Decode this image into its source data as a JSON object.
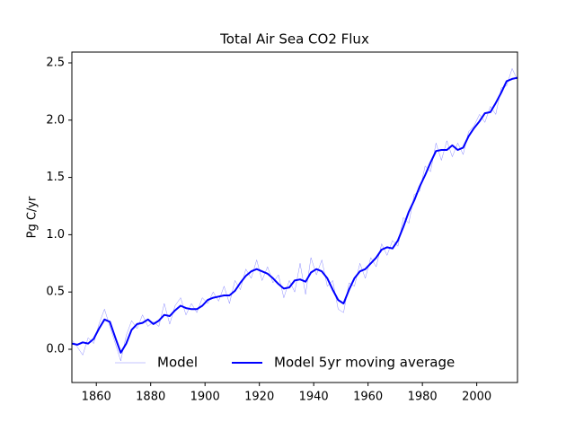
{
  "chart_data": {
    "type": "line",
    "title": "Total Air Sea CO2 Flux",
    "ylabel": "Pg C/yr",
    "x": [
      1851,
      1853,
      1855,
      1857,
      1859,
      1861,
      1863,
      1865,
      1867,
      1869,
      1871,
      1873,
      1875,
      1877,
      1879,
      1881,
      1883,
      1885,
      1887,
      1889,
      1891,
      1893,
      1895,
      1897,
      1899,
      1901,
      1903,
      1905,
      1907,
      1909,
      1911,
      1913,
      1915,
      1917,
      1919,
      1921,
      1923,
      1925,
      1927,
      1929,
      1931,
      1933,
      1935,
      1937,
      1939,
      1941,
      1943,
      1945,
      1947,
      1949,
      1951,
      1953,
      1955,
      1957,
      1959,
      1961,
      1963,
      1965,
      1967,
      1969,
      1971,
      1973,
      1975,
      1977,
      1979,
      1981,
      1983,
      1985,
      1987,
      1989,
      1991,
      1993,
      1995,
      1997,
      1999,
      2001,
      2003,
      2005,
      2007,
      2009,
      2011,
      2013,
      2015
    ],
    "series": [
      {
        "name": "Model",
        "color": "#0000ff",
        "width": 0.5,
        "opacity": 0.45,
        "values": [
          0.08,
          0.02,
          -0.05,
          0.1,
          0.05,
          0.22,
          0.35,
          0.2,
          0.05,
          -0.1,
          0.12,
          0.25,
          0.18,
          0.3,
          0.2,
          0.24,
          0.2,
          0.4,
          0.22,
          0.38,
          0.45,
          0.3,
          0.4,
          0.32,
          0.45,
          0.4,
          0.5,
          0.42,
          0.55,
          0.4,
          0.6,
          0.52,
          0.7,
          0.62,
          0.78,
          0.6,
          0.72,
          0.58,
          0.65,
          0.45,
          0.6,
          0.5,
          0.75,
          0.48,
          0.8,
          0.65,
          0.78,
          0.55,
          0.6,
          0.35,
          0.32,
          0.58,
          0.55,
          0.75,
          0.62,
          0.8,
          0.72,
          0.92,
          0.82,
          0.95,
          0.9,
          1.15,
          1.1,
          1.35,
          1.38,
          1.6,
          1.55,
          1.8,
          1.65,
          1.82,
          1.68,
          1.8,
          1.7,
          1.9,
          1.95,
          2.05,
          1.98,
          2.12,
          2.05,
          2.28,
          2.3,
          2.45,
          2.35
        ]
      },
      {
        "name": "Model 5yr moving average",
        "color": "#0000ff",
        "width": 2,
        "opacity": 1,
        "values": [
          0.05,
          0.04,
          0.06,
          0.05,
          0.09,
          0.18,
          0.26,
          0.24,
          0.1,
          -0.03,
          0.05,
          0.17,
          0.22,
          0.23,
          0.26,
          0.22,
          0.25,
          0.3,
          0.29,
          0.34,
          0.38,
          0.36,
          0.35,
          0.35,
          0.38,
          0.43,
          0.45,
          0.46,
          0.47,
          0.47,
          0.51,
          0.58,
          0.64,
          0.68,
          0.7,
          0.68,
          0.66,
          0.62,
          0.57,
          0.53,
          0.54,
          0.6,
          0.61,
          0.59,
          0.67,
          0.7,
          0.68,
          0.62,
          0.52,
          0.43,
          0.4,
          0.52,
          0.62,
          0.68,
          0.7,
          0.75,
          0.8,
          0.87,
          0.89,
          0.88,
          0.95,
          1.07,
          1.2,
          1.3,
          1.42,
          1.52,
          1.63,
          1.73,
          1.74,
          1.74,
          1.78,
          1.74,
          1.76,
          1.86,
          1.93,
          1.99,
          2.06,
          2.07,
          2.15,
          2.24,
          2.34,
          2.36,
          2.37
        ]
      }
    ],
    "xlim": [
      1851,
      2015
    ],
    "ylim": [
      -0.29,
      2.594
    ],
    "xticks": [
      1860,
      1880,
      1900,
      1920,
      1940,
      1960,
      1980,
      2000
    ],
    "yticks": [
      {
        "value": 0,
        "label": "0.0"
      },
      0.5,
      {
        "value": 1,
        "label": "1.0"
      },
      1.5,
      {
        "value": 2,
        "label": "2.0"
      },
      2.5
    ],
    "legend": "lower center"
  }
}
